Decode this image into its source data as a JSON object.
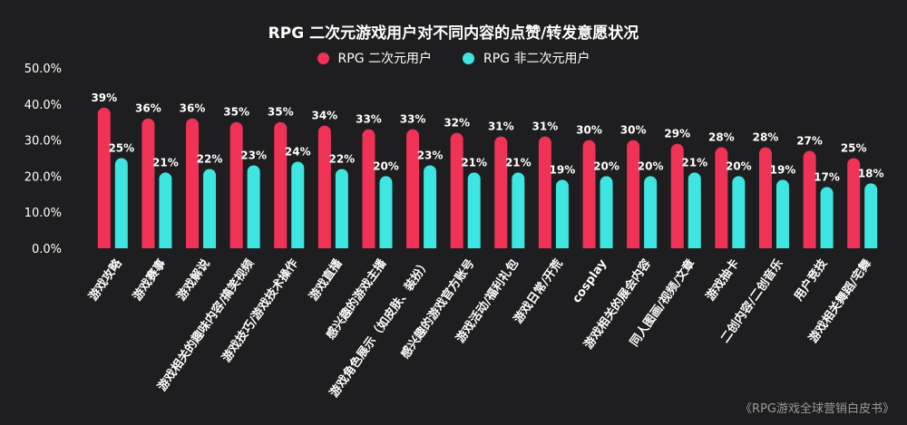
{
  "chart_data": {
    "type": "bar",
    "title": "RPG 二次元游戏用户对不同内容的点赞/转发意愿状况",
    "ylim": [
      0,
      50
    ],
    "yticks": [
      "50.0%",
      "40.0%",
      "30.0%",
      "20.0%",
      "10.0%",
      "0.0%"
    ],
    "ytick_values": [
      50,
      40,
      30,
      20,
      10,
      0
    ],
    "legend_position": "top-center",
    "grid": false,
    "categories": [
      "游戏攻略",
      "游戏赛事",
      "游戏解说",
      "游戏相关的趣味内容/搞笑视频",
      "游戏技巧/游戏技术操作",
      "游戏直播",
      "感兴趣的游戏主播",
      "游戏角色展示（如皮肤、装扮）",
      "感兴趣的游戏官方账号",
      "游戏活动/福利礼包",
      "游戏日常/开荒",
      "cosplay",
      "游戏相关的展会内容",
      "同人图画/视频/文章",
      "游戏抽卡",
      "二创内容/二创音乐",
      "用户竞技",
      "游戏相关舞蹈/宅舞"
    ],
    "series": [
      {
        "name": "RPG 二次元用户",
        "color": "#ef3256",
        "values": [
          39,
          36,
          36,
          35,
          35,
          34,
          33,
          33,
          32,
          31,
          31,
          30,
          30,
          29,
          28,
          28,
          27,
          25
        ],
        "labels": [
          "39%",
          "36%",
          "36%",
          "35%",
          "35%",
          "34%",
          "33%",
          "33%",
          "32%",
          "31%",
          "31%",
          "30%",
          "30%",
          "29%",
          "28%",
          "28%",
          "27%",
          "25%"
        ]
      },
      {
        "name": "RPG 非二次元用户",
        "color": "#3de6e0",
        "values": [
          25,
          21,
          22,
          23,
          24,
          22,
          20,
          23,
          21,
          21,
          19,
          20,
          20,
          21,
          20,
          19,
          17,
          18
        ],
        "labels": [
          "25%",
          "21%",
          "22%",
          "23%",
          "24%",
          "22%",
          "20%",
          "23%",
          "21%",
          "21%",
          "19%",
          "20%",
          "20%",
          "21%",
          "20%",
          "19%",
          "17%",
          "18%"
        ]
      }
    ]
  },
  "source": "《RPG游戏全球营销白皮书》"
}
